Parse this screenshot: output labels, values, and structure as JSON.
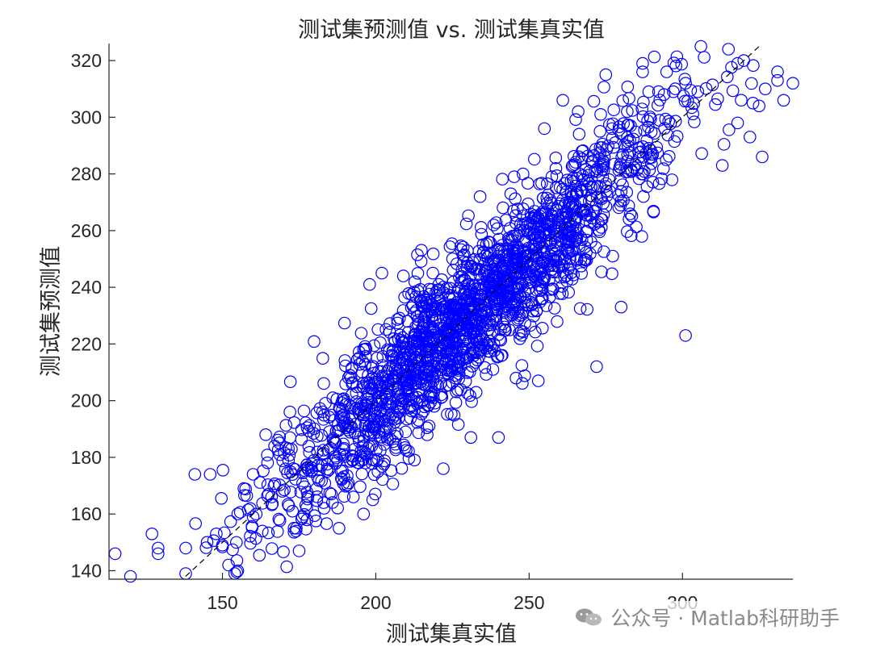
{
  "chart_data": {
    "type": "scatter",
    "title": "测试集预测值 vs. 测试集真实值",
    "xlabel": "测试集真实值",
    "ylabel": "测试集预测值",
    "xlim": [
      113,
      336
    ],
    "ylim": [
      137,
      326
    ],
    "xticks": [
      150,
      200,
      250,
      300
    ],
    "yticks": [
      140,
      160,
      180,
      200,
      220,
      240,
      260,
      280,
      300,
      320
    ],
    "marker": "open-circle",
    "marker_color": "#0000ff",
    "reference_line": {
      "style": "dashed",
      "color": "#000000",
      "x": [
        138,
        325
      ],
      "y": [
        138,
        325
      ]
    },
    "grid": false,
    "legend": "none",
    "point_model": {
      "n": 2000,
      "x_range": [
        115,
        335
      ],
      "x_center": 230,
      "x_sd": 33,
      "y_noise_sd": 13
    },
    "points": [
      [
        115,
        146
      ],
      [
        120,
        138
      ],
      [
        127,
        153
      ],
      [
        129,
        148
      ],
      [
        129,
        146
      ],
      [
        138,
        148
      ],
      [
        138,
        139
      ],
      [
        141,
        174
      ],
      [
        145,
        150
      ],
      [
        146,
        174
      ],
      [
        148,
        153
      ],
      [
        150,
        149
      ],
      [
        152,
        142
      ],
      [
        154,
        139
      ],
      [
        155,
        140
      ],
      [
        157,
        169
      ],
      [
        160,
        174
      ],
      [
        160,
        159
      ],
      [
        161,
        160
      ],
      [
        163,
        154
      ],
      [
        165,
        167
      ],
      [
        166,
        166
      ],
      [
        167,
        184
      ],
      [
        172,
        196
      ],
      [
        174,
        154
      ],
      [
        175,
        147
      ],
      [
        183,
        164
      ],
      [
        188,
        155
      ],
      [
        191,
        171
      ],
      [
        196,
        160
      ],
      [
        198,
        241
      ],
      [
        199,
        165
      ],
      [
        202,
        245
      ],
      [
        209,
        244
      ],
      [
        222,
        176
      ],
      [
        231,
        187
      ],
      [
        234,
        272
      ],
      [
        240,
        187
      ],
      [
        244,
        273
      ],
      [
        248,
        280
      ],
      [
        253,
        207
      ],
      [
        255,
        296
      ],
      [
        261,
        306
      ],
      [
        266,
        302
      ],
      [
        272,
        212
      ],
      [
        275,
        315
      ],
      [
        277,
        296
      ],
      [
        280,
        233
      ],
      [
        282,
        302
      ],
      [
        286,
        286
      ],
      [
        287,
        319
      ],
      [
        287,
        316
      ],
      [
        289,
        309
      ],
      [
        294,
        308
      ],
      [
        297,
        309
      ],
      [
        301,
        223
      ],
      [
        301,
        312
      ],
      [
        305,
        309
      ],
      [
        306,
        325
      ],
      [
        313,
        283
      ],
      [
        315,
        324
      ],
      [
        318,
        319
      ],
      [
        318,
        298
      ],
      [
        320,
        320
      ],
      [
        322,
        293
      ],
      [
        323,
        305
      ],
      [
        325,
        304
      ],
      [
        326,
        286
      ],
      [
        327,
        310
      ],
      [
        331,
        316
      ],
      [
        331,
        313
      ],
      [
        333,
        306
      ],
      [
        336,
        312
      ]
    ]
  },
  "watermark": {
    "text": "公众号 · Matlab科研助手",
    "icon": "wechat-icon"
  }
}
